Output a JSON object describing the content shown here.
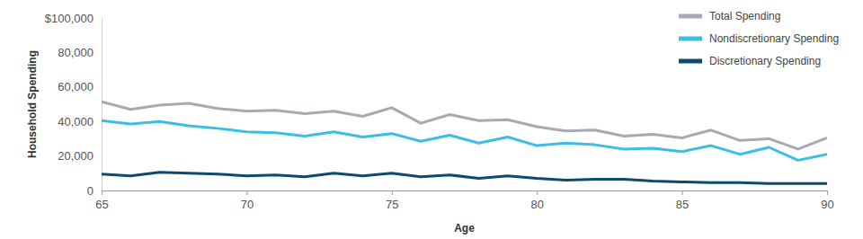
{
  "chart_data": {
    "type": "line",
    "x_label": "Age",
    "y_label": "Household Spending",
    "x": [
      65,
      66,
      67,
      68,
      69,
      70,
      71,
      72,
      73,
      74,
      75,
      76,
      77,
      78,
      79,
      80,
      81,
      82,
      83,
      84,
      85,
      86,
      87,
      88,
      89,
      90
    ],
    "series": [
      {
        "name": "Total Spending",
        "color": "#a7a9b4",
        "values": [
          51500,
          47000,
          49500,
          50500,
          47500,
          46000,
          46500,
          44500,
          46000,
          43000,
          48000,
          39000,
          44000,
          40500,
          41000,
          37000,
          34500,
          35000,
          31500,
          32500,
          30500,
          35000,
          29000,
          30000,
          24000,
          30500
        ]
      },
      {
        "name": "Nondiscretionary Spending",
        "color": "#3cbde2",
        "values": [
          40500,
          38500,
          40000,
          37500,
          36000,
          34000,
          33500,
          31500,
          34000,
          31000,
          33000,
          28500,
          32000,
          27500,
          31000,
          26000,
          27500,
          26500,
          24000,
          24500,
          22500,
          26000,
          21000,
          25000,
          17500,
          21000
        ]
      },
      {
        "name": "Discretionary Spending",
        "color": "#0d4a70",
        "values": [
          9500,
          8500,
          10500,
          10000,
          9500,
          8500,
          9000,
          8000,
          10000,
          8500,
          10000,
          8000,
          9000,
          7000,
          8500,
          7000,
          6000,
          6500,
          6500,
          5500,
          5000,
          4500,
          4500,
          4000,
          4000,
          4000
        ]
      }
    ],
    "xlim": [
      65,
      90
    ],
    "xticks": [
      65,
      70,
      75,
      80,
      85,
      90
    ],
    "ylim": [
      0,
      100000
    ],
    "yticks": [
      0,
      {
        "value": 20000,
        "label": "20,000"
      },
      {
        "value": 40000,
        "label": "40,000"
      },
      {
        "value": 60000,
        "label": "60,000"
      },
      {
        "value": 80000,
        "label": "80,000"
      },
      {
        "value": 100000,
        "label": "$100,000"
      }
    ],
    "grid": false,
    "legend": "top-right"
  }
}
